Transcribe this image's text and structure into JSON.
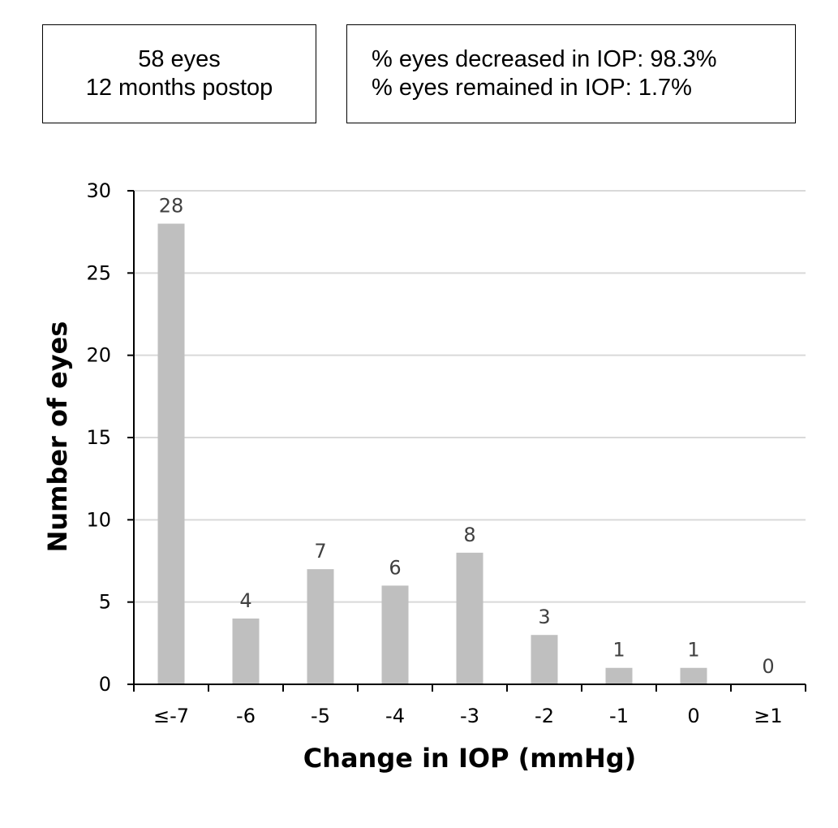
{
  "info": {
    "left_line1": "58 eyes",
    "left_line2": "12 months postop",
    "right_line1": "% eyes decreased in IOP: 98.3%",
    "right_line2": "% eyes remained in IOP: 1.7%"
  },
  "chart_data": {
    "type": "bar",
    "categories": [
      "≤-7",
      "-6",
      "-5",
      "-4",
      "-3",
      "-2",
      "-1",
      "0",
      "≥1"
    ],
    "values": [
      28,
      4,
      7,
      6,
      8,
      3,
      1,
      1,
      0
    ],
    "data_labels": [
      "28",
      "4",
      "7",
      "6",
      "8",
      "3",
      "1",
      "1",
      "0"
    ],
    "xlabel": "Change in IOP (mmHg)",
    "ylabel": "Number of eyes",
    "ylim": [
      0,
      30
    ],
    "yticks": [
      0,
      5,
      10,
      15,
      20,
      25,
      30
    ],
    "grid": true,
    "bar_color": "#bfbfbf",
    "grid_color": "#d9d9d9",
    "label_color": "#404040"
  }
}
